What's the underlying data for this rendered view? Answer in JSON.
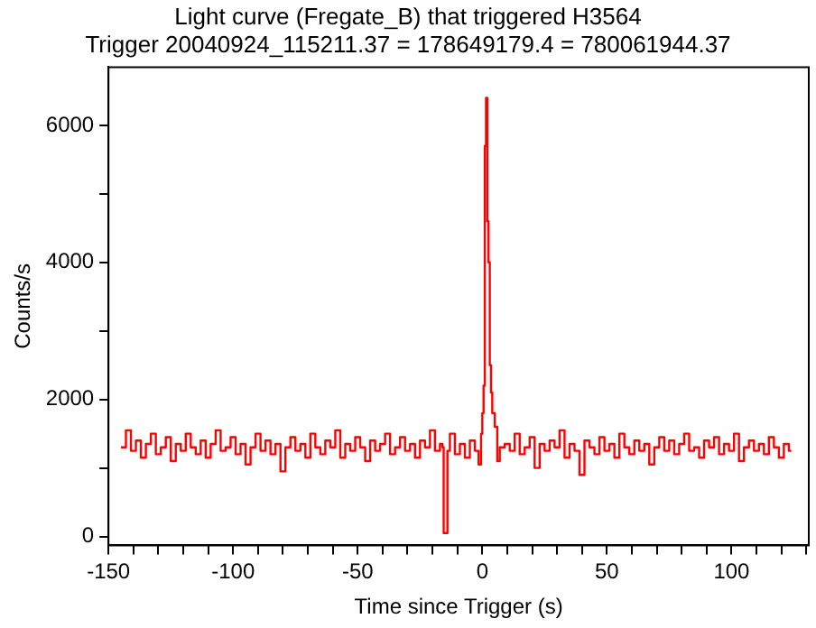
{
  "chart_data": {
    "type": "step",
    "title": "Light curve (Fregate_B) that triggered H3564",
    "subtitle": "Trigger 20040924_115211.37 = 178649179.4 = 780061944.37",
    "xlabel": "Time since Trigger (s)",
    "ylabel": "Counts/s",
    "xlim": [
      -150,
      131
    ],
    "ylim": [
      -130,
      6850
    ],
    "xticks": [
      -150,
      {
        "value": -140,
        "label": null
      },
      {
        "value": -130,
        "label": null
      },
      {
        "value": -120,
        "label": null
      },
      {
        "value": -110,
        "label": null
      },
      -100,
      {
        "value": -90,
        "label": null
      },
      {
        "value": -80,
        "label": null
      },
      {
        "value": -70,
        "label": null
      },
      {
        "value": -60,
        "label": null
      },
      -50,
      {
        "value": -40,
        "label": null
      },
      {
        "value": -30,
        "label": null
      },
      {
        "value": -20,
        "label": null
      },
      {
        "value": -10,
        "label": null
      },
      0,
      {
        "value": 10,
        "label": null
      },
      {
        "value": 20,
        "label": null
      },
      {
        "value": 30,
        "label": null
      },
      {
        "value": 40,
        "label": null
      },
      50,
      {
        "value": 60,
        "label": null
      },
      {
        "value": 70,
        "label": null
      },
      {
        "value": 80,
        "label": null
      },
      {
        "value": 90,
        "label": null
      },
      100,
      {
        "value": 110,
        "label": null
      },
      {
        "value": 120,
        "label": null
      },
      {
        "value": 130,
        "label": null
      }
    ],
    "yticks": [
      0,
      {
        "value": 1000,
        "label": null
      },
      2000,
      {
        "value": 3000,
        "label": null
      },
      4000,
      {
        "value": 5000,
        "label": null
      },
      6000
    ],
    "grid": false,
    "legend": false,
    "marker": "none",
    "line_style": "solid",
    "series": [
      {
        "color": "#ff0000",
        "x": [
          -145,
          -143,
          -141,
          -139,
          -137,
          -135,
          -133,
          -131,
          -129,
          -127,
          -125,
          -123,
          -121,
          -119,
          -117,
          -115,
          -113,
          -111,
          -109,
          -107,
          -105,
          -103,
          -101,
          -99,
          -97,
          -95,
          -93,
          -91,
          -89,
          -87,
          -85,
          -83,
          -81,
          -79,
          -77,
          -75,
          -73,
          -71,
          -69,
          -67,
          -65,
          -63,
          -61,
          -59,
          -57,
          -55,
          -53,
          -51,
          -49,
          -47,
          -45,
          -43,
          -41,
          -39,
          -37,
          -35,
          -33,
          -31,
          -29,
          -27,
          -25,
          -23,
          -21,
          -19,
          -17,
          -16,
          -15.5,
          -14,
          -13,
          -11,
          -9,
          -7,
          -5,
          -3,
          -1.5,
          -0.5,
          0,
          0.5,
          1,
          1.5,
          2,
          2.5,
          3,
          3.5,
          4,
          5,
          6,
          7,
          9,
          11,
          13,
          15,
          17,
          19,
          21,
          23,
          25,
          27,
          29,
          31,
          33,
          35,
          37,
          39,
          41,
          43,
          45,
          47,
          49,
          51,
          53,
          55,
          57,
          59,
          61,
          63,
          65,
          67,
          69,
          71,
          73,
          75,
          77,
          79,
          81,
          83,
          85,
          87,
          89,
          91,
          93,
          95,
          97,
          99,
          101,
          103,
          105,
          107,
          109,
          111,
          113,
          115,
          117,
          119,
          121,
          123,
          124
        ],
        "values": [
          1300,
          1550,
          1250,
          1400,
          1150,
          1350,
          1500,
          1200,
          1300,
          1450,
          1100,
          1350,
          1250,
          1500,
          1300,
          1200,
          1400,
          1150,
          1350,
          1550,
          1250,
          1300,
          1450,
          1200,
          1350,
          1050,
          1300,
          1500,
          1250,
          1400,
          1200,
          1350,
          950,
          1300,
          1450,
          1250,
          1350,
          1150,
          1500,
          1300,
          1200,
          1400,
          1300,
          1550,
          1150,
          1350,
          1250,
          1450,
          1300,
          1100,
          1400,
          1250,
          1350,
          1500,
          1200,
          1300,
          1450,
          1250,
          1350,
          1150,
          1400,
          1300,
          1550,
          1250,
          1350,
          1300,
          50,
          1250,
          1500,
          1200,
          1350,
          1150,
          1400,
          1250,
          1050,
          1500,
          1800,
          2200,
          5700,
          6400,
          4600,
          4000,
          2500,
          2100,
          1800,
          1600,
          1100,
          1300,
          1350,
          1250,
          1500,
          1200,
          1300,
          1450,
          1000,
          1350,
          1250,
          1400,
          1300,
          1550,
          1150,
          1350,
          1250,
          900,
          1400,
          1300,
          1200,
          1450,
          1250,
          1350,
          1150,
          1500,
          1300,
          1200,
          1400,
          1250,
          1350,
          1050,
          1300,
          1450,
          1250,
          1400,
          1200,
          1350,
          1500,
          1250,
          1300,
          1150,
          1400,
          1300,
          1450,
          1200,
          1350,
          1250,
          1500,
          1100,
          1300,
          1400,
          1250,
          1350,
          1200,
          1450,
          1300,
          1150,
          1350,
          1250,
          1250
        ]
      }
    ]
  }
}
